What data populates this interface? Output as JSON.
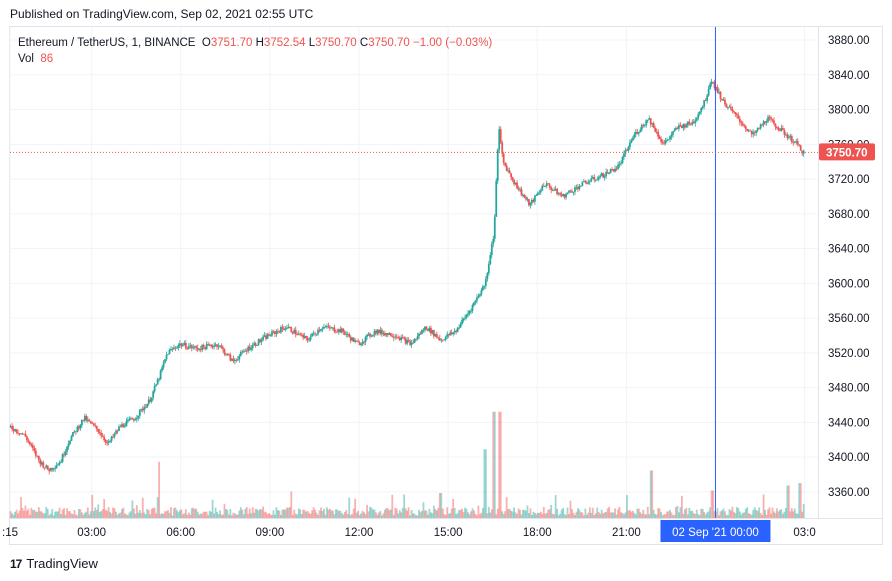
{
  "header": {
    "published": "Published on TradingView.com, Sep 02, 2021 02:55 UTC"
  },
  "legend": {
    "symbol": "Ethereum / TetherUS, 1, BINANCE",
    "o_label": "O",
    "o_value": "3751.70",
    "h_label": "H",
    "h_value": "3752.54",
    "l_label": "L",
    "l_value": "3750.70",
    "c_label": "C",
    "c_value": "3750.70",
    "change": "−1.00 (−0.03%)",
    "vol_label": "Vol",
    "vol_value": "86"
  },
  "footer": {
    "logo_text": "TradingView",
    "logo_mark": "17"
  },
  "colors": {
    "up": "#26a69a",
    "down": "#ef5350",
    "crosshair": "#2962ff",
    "price_label_bg": "#ef5350",
    "time_label_bg": "#2962ff",
    "grid": "#f0f3fa"
  },
  "chart_data": {
    "type": "candlestick",
    "ylim": [
      3330,
      3895
    ],
    "y_ticks": [
      "3880.00",
      "3840.00",
      "3800.00",
      "3760.00",
      "3720.00",
      "3680.00",
      "3640.00",
      "3600.00",
      "3560.00",
      "3520.00",
      "3480.00",
      "3440.00",
      "3400.00",
      "3360.00"
    ],
    "y_tick_values": [
      3880,
      3840,
      3800,
      3760,
      3720,
      3680,
      3640,
      3600,
      3560,
      3520,
      3480,
      3440,
      3400,
      3360
    ],
    "x_ticks": [
      ":15",
      "03:00",
      "06:00",
      "09:00",
      "12:00",
      "15:00",
      "18:00",
      "21:00",
      "03:0"
    ],
    "x_tick_hours": [
      0.0,
      2.75,
      5.75,
      8.75,
      11.75,
      14.75,
      17.75,
      20.75,
      26.75
    ],
    "last_price": 3750.7,
    "last_price_label": "3750.70",
    "crosshair_label": "02 Sep '21   00:00",
    "crosshair_hour": 23.75,
    "hour_range": [
      0,
      27
    ],
    "price_path": [
      [
        0.0,
        3435
      ],
      [
        0.5,
        3425
      ],
      [
        1.0,
        3395
      ],
      [
        1.3,
        3385
      ],
      [
        1.7,
        3395
      ],
      [
        2.0,
        3420
      ],
      [
        2.5,
        3445
      ],
      [
        3.0,
        3430
      ],
      [
        3.3,
        3415
      ],
      [
        3.7,
        3435
      ],
      [
        4.2,
        3445
      ],
      [
        4.7,
        3465
      ],
      [
        5.0,
        3490
      ],
      [
        5.3,
        3520
      ],
      [
        5.7,
        3530
      ],
      [
        6.3,
        3525
      ],
      [
        7.0,
        3530
      ],
      [
        7.5,
        3510
      ],
      [
        8.0,
        3525
      ],
      [
        8.7,
        3540
      ],
      [
        9.3,
        3550
      ],
      [
        10.0,
        3535
      ],
      [
        10.5,
        3550
      ],
      [
        11.2,
        3545
      ],
      [
        11.7,
        3530
      ],
      [
        12.3,
        3545
      ],
      [
        13.0,
        3540
      ],
      [
        13.5,
        3530
      ],
      [
        14.0,
        3550
      ],
      [
        14.5,
        3535
      ],
      [
        15.0,
        3545
      ],
      [
        15.5,
        3570
      ],
      [
        16.0,
        3600
      ],
      [
        16.3,
        3660
      ],
      [
        16.45,
        3780
      ],
      [
        16.6,
        3740
      ],
      [
        17.0,
        3715
      ],
      [
        17.5,
        3690
      ],
      [
        18.0,
        3715
      ],
      [
        18.6,
        3700
      ],
      [
        19.3,
        3715
      ],
      [
        20.0,
        3725
      ],
      [
        20.5,
        3735
      ],
      [
        21.0,
        3770
      ],
      [
        21.5,
        3790
      ],
      [
        22.0,
        3760
      ],
      [
        22.5,
        3780
      ],
      [
        23.0,
        3785
      ],
      [
        23.4,
        3810
      ],
      [
        23.6,
        3835
      ],
      [
        24.0,
        3810
      ],
      [
        24.5,
        3790
      ],
      [
        25.0,
        3770
      ],
      [
        25.5,
        3790
      ],
      [
        26.0,
        3775
      ],
      [
        26.5,
        3760
      ],
      [
        26.7,
        3751
      ]
    ],
    "volume_spikes": [
      [
        16.3,
        0.85
      ],
      [
        16.5,
        0.85
      ],
      [
        16.0,
        0.55
      ],
      [
        5.0,
        0.45
      ],
      [
        23.65,
        0.22
      ],
      [
        21.6,
        0.38
      ],
      [
        26.6,
        0.28
      ],
      [
        26.2,
        0.26
      ],
      [
        14.5,
        0.2
      ]
    ]
  }
}
